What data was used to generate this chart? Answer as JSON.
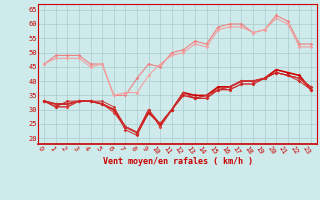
{
  "background_color": "#ceeaea",
  "grid_color": "#aacccc",
  "x_labels": [
    "0",
    "1",
    "2",
    "3",
    "4",
    "5",
    "6",
    "7",
    "8",
    "9",
    "10",
    "11",
    "12",
    "13",
    "14",
    "15",
    "16",
    "17",
    "18",
    "19",
    "20",
    "21",
    "22",
    "23"
  ],
  "xlabel": "Vent moyen/en rafales ( km/h )",
  "ylim": [
    18,
    67
  ],
  "yticks": [
    20,
    25,
    30,
    35,
    40,
    45,
    50,
    55,
    60,
    65
  ],
  "line1": [
    46,
    49,
    49,
    49,
    46,
    46,
    35,
    35,
    41,
    46,
    45,
    50,
    51,
    54,
    53,
    59,
    60,
    60,
    57,
    58,
    63,
    61,
    53,
    53
  ],
  "line2": [
    46,
    48,
    48,
    48,
    45,
    46,
    35,
    36,
    36,
    42,
    46,
    49,
    50,
    53,
    52,
    58,
    59,
    59,
    57,
    58,
    62,
    60,
    52,
    52
  ],
  "line3": [
    33,
    32,
    32,
    33,
    33,
    32,
    30,
    24,
    22,
    29,
    25,
    30,
    36,
    35,
    35,
    38,
    38,
    40,
    40,
    41,
    44,
    43,
    42,
    37
  ],
  "line4": [
    33,
    31,
    31,
    33,
    33,
    32,
    30,
    24,
    22,
    30,
    24,
    30,
    36,
    34,
    35,
    37,
    38,
    40,
    40,
    41,
    43,
    42,
    41,
    38
  ],
  "line5": [
    33,
    31,
    31,
    33,
    33,
    32,
    29,
    24,
    22,
    30,
    24,
    30,
    35,
    34,
    34,
    37,
    37,
    39,
    39,
    41,
    43,
    42,
    41,
    37
  ],
  "line6": [
    33,
    32,
    32,
    33,
    33,
    33,
    31,
    24,
    22,
    30,
    25,
    30,
    36,
    34,
    35,
    37,
    38,
    40,
    40,
    41,
    43,
    42,
    41,
    38
  ],
  "line7": [
    33,
    31,
    33,
    33,
    33,
    32,
    30,
    23,
    21,
    29,
    25,
    30,
    35,
    34,
    34,
    37,
    37,
    39,
    39,
    41,
    43,
    42,
    40,
    37
  ],
  "color_light1": "#f08080",
  "color_light2": "#f4a0a0",
  "color_dark1": "#cc0000",
  "color_dark2": "#cc2222",
  "color_dark3": "#dd4444",
  "color_mid": "#cc3333",
  "marker": "D",
  "markersize": 1.8,
  "red_color": "#cc0000"
}
